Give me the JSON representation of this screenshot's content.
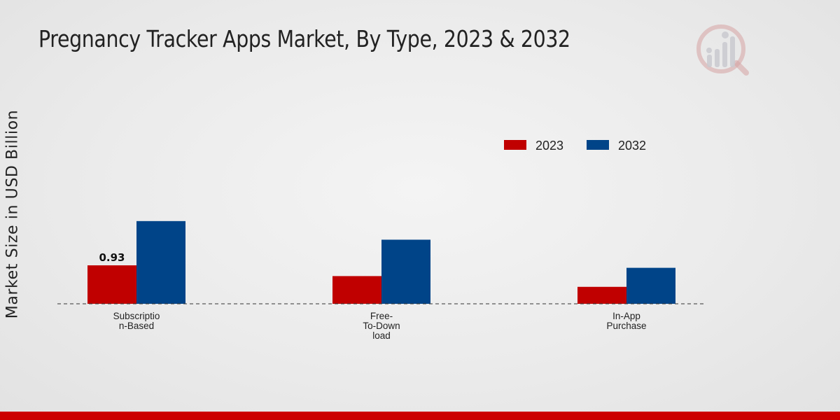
{
  "chart_data": {
    "type": "bar",
    "title": "Pregnancy Tracker Apps Market, By Type, 2023 & 2032",
    "xlabel": "",
    "ylabel": "Market Size in USD Billion",
    "categories": [
      [
        "Subscriptio",
        "n-Based"
      ],
      [
        "Free-",
        "To-Down",
        "load"
      ],
      [
        "In-App",
        "Purchase"
      ]
    ],
    "series": [
      {
        "name": "2023",
        "color": "#c00000",
        "values": [
          0.93,
          0.67,
          0.41
        ]
      },
      {
        "name": "2032",
        "color": "#004488",
        "values": [
          2.0,
          1.55,
          0.87
        ]
      }
    ],
    "data_labels": [
      {
        "series": 0,
        "index": 0,
        "text": "0.93"
      }
    ],
    "ylim": [
      0,
      6.5
    ],
    "legend_position": "top-right",
    "grid": false
  }
}
